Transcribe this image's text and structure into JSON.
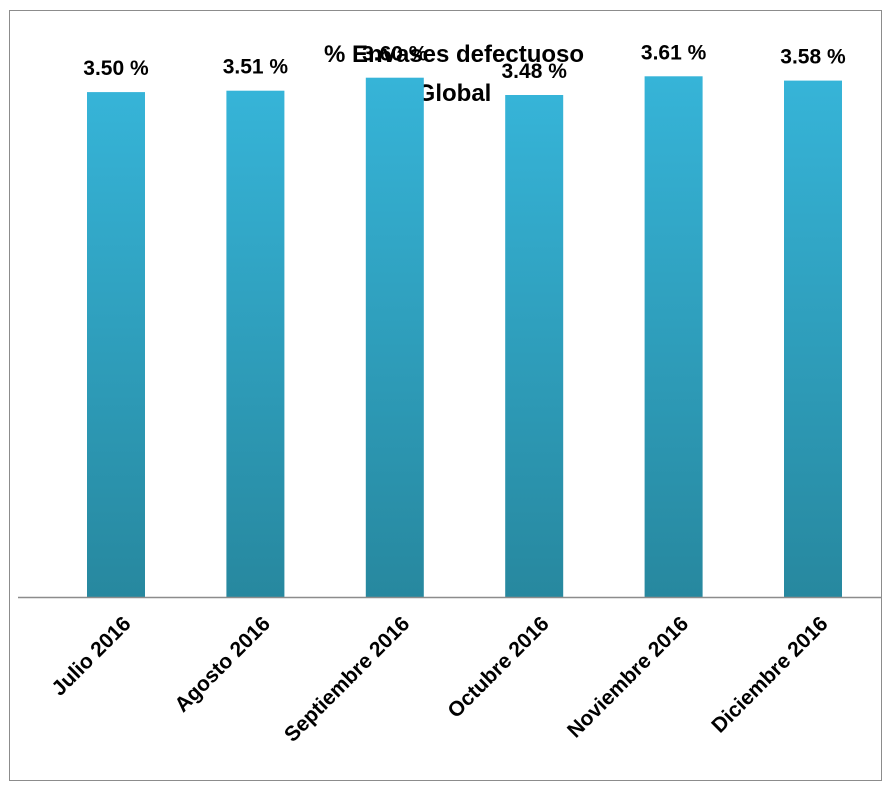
{
  "chart_data": {
    "type": "bar",
    "title": [
      "% Envases defectuoso",
      "Global"
    ],
    "xlabel": "",
    "ylabel": "",
    "categories": [
      "Julio 2016",
      "Agosto 2016",
      "Septiembre 2016",
      "Octubre 2016",
      "Noviembre 2016",
      "Diciembre 2016"
    ],
    "values": [
      3.5,
      3.51,
      3.6,
      3.48,
      3.61,
      3.58
    ],
    "value_labels": [
      "3.50 %",
      "3.51 %",
      "3.60 %",
      "3.48 %",
      "3.61 %",
      "3.58 %"
    ],
    "ylim": [
      0,
      4.0
    ],
    "grid": false,
    "legend": "none",
    "colors": {
      "bar_top": "#36b4d8",
      "bar_bottom": "#27889f",
      "axis": "#8c8c8c",
      "frame": "#8c8c8c"
    }
  }
}
